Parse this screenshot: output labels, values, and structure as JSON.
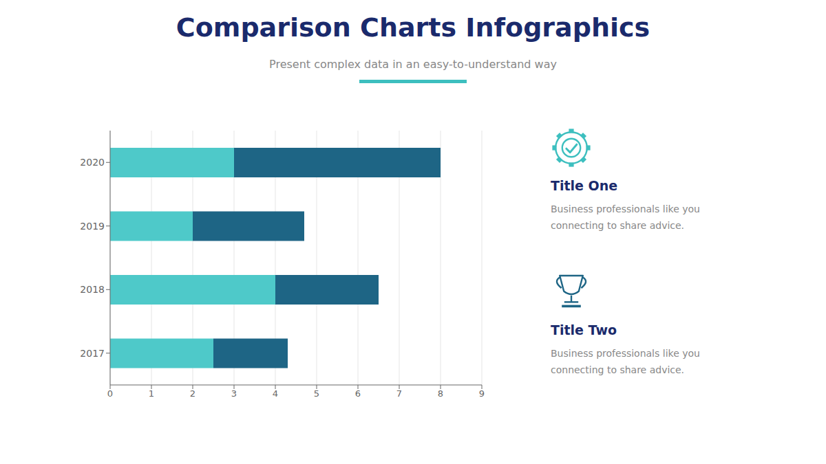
{
  "chart_data": {
    "type": "bar",
    "title": "Comparison Charts Infographics",
    "subtitle": "Present complex data in an easy-to-understand way",
    "orientation": "horizontal",
    "stacked": true,
    "categories": [
      "2020",
      "2019",
      "2018",
      "2017"
    ],
    "series": [
      {
        "color": "#4ec9c9",
        "values": [
          3.0,
          2.0,
          4.0,
          2.5
        ]
      },
      {
        "color": "#1e6585",
        "values": [
          5.0,
          2.7,
          2.5,
          1.8
        ]
      }
    ],
    "xlim": [
      0,
      9
    ],
    "xticks": [
      0,
      1,
      2,
      3,
      4,
      5,
      6,
      7,
      8,
      9
    ],
    "grid": true,
    "annotations": [
      {
        "title": "Title One",
        "text": "Business professionals like you\nconnecting to share advice."
      },
      {
        "title": "Title Two",
        "text": "Business professionals like you\nconnecting to share advice."
      }
    ]
  }
}
